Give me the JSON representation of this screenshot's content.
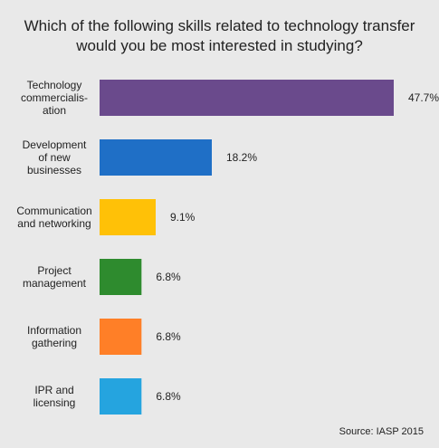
{
  "chart_data": {
    "type": "bar",
    "orientation": "horizontal",
    "title": [
      "Which of the following skills related to technology transfer",
      "would you be most interested in studying?"
    ],
    "categories": [
      [
        "Technology",
        "commercialis-",
        "ation"
      ],
      [
        "Development",
        "of new",
        "businesses"
      ],
      [
        "Communication",
        "and networking"
      ],
      [
        "Project",
        "management"
      ],
      [
        "Information",
        "gathering"
      ],
      [
        "IPR and",
        "licensing"
      ]
    ],
    "values": [
      47.7,
      18.2,
      9.1,
      6.8,
      6.8,
      6.8
    ],
    "value_labels": [
      "47.7%",
      "18.2%",
      "9.1%",
      "6.8%",
      "6.8%",
      "6.8%"
    ],
    "colors": [
      "#6a4a8c",
      "#1f6fc6",
      "#ffc107",
      "#2e8b2e",
      "#ff7f27",
      "#25a4df"
    ],
    "xlim": [
      0,
      47.7
    ],
    "unit": "%",
    "grid": false,
    "legend": "none"
  },
  "source": "Source: IASP 2015"
}
